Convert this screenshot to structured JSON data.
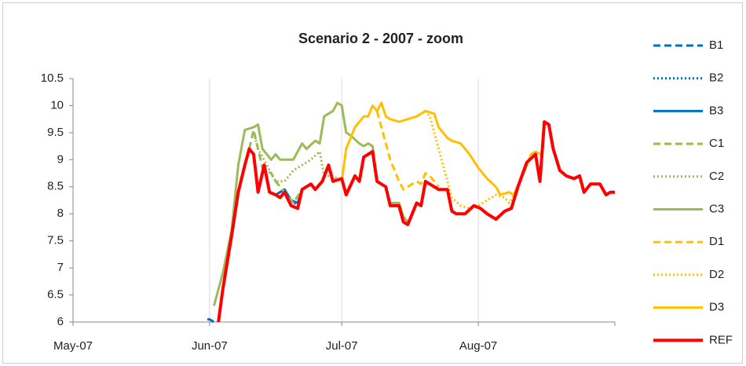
{
  "chart_data": {
    "type": "line",
    "title": "Scenario 2 - 2007 - zoom",
    "xlim": [
      0,
      123
    ],
    "xticks": [
      {
        "value": 0,
        "label": "May-07"
      },
      {
        "value": 31,
        "label": "Jun-07"
      },
      {
        "value": 61,
        "label": "Jul-07"
      },
      {
        "value": 92,
        "label": "Aug-07"
      }
    ],
    "ylim": [
      6,
      10.5
    ],
    "yticks": [
      6,
      6.5,
      7,
      7.5,
      8,
      8.5,
      9,
      9.5,
      10,
      10.5
    ],
    "grid": "x",
    "legend": "right",
    "series": [
      {
        "name": "B1",
        "color": "#0070c0",
        "dash": "dashed",
        "x": [
          30.5,
          31,
          32
        ],
        "values": [
          6.05,
          6.05,
          6.0
        ]
      },
      {
        "name": "B2",
        "color": "#0070c0",
        "dash": "dotted",
        "x": [
          46,
          48,
          49.5,
          51
        ],
        "values": [
          8.35,
          8.45,
          8.25,
          8.15
        ]
      },
      {
        "name": "B3",
        "color": "#0070c0",
        "dash": "solid",
        "x": [
          46,
          47,
          48,
          49.5,
          51,
          52
        ],
        "values": [
          8.35,
          8.4,
          8.45,
          8.25,
          8.2,
          8.45
        ]
      },
      {
        "name": "C1",
        "color": "#9bbb59",
        "dash": "dashed",
        "x": [
          40,
          41,
          42,
          43,
          45,
          46,
          48,
          49,
          50,
          52
        ],
        "values": [
          9.2,
          9.55,
          9.2,
          8.85,
          8.75,
          8.6,
          8.4,
          8.3,
          8.2,
          8.45
        ]
      },
      {
        "name": "C2",
        "color": "#9bbb59",
        "dash": "dotted",
        "x": [
          41,
          42,
          44,
          46,
          48,
          50,
          52,
          54,
          56,
          57,
          59,
          61
        ],
        "values": [
          9.5,
          9.2,
          8.9,
          8.6,
          8.6,
          8.8,
          8.9,
          9.0,
          9.15,
          8.7,
          8.7,
          8.6
        ]
      },
      {
        "name": "C3",
        "color": "#9bbb59",
        "dash": "solid",
        "x": [
          32,
          34,
          36,
          37.5,
          39,
          41,
          42,
          43,
          45,
          46,
          47,
          49,
          50,
          52,
          53,
          55,
          56,
          57,
          59,
          60,
          61,
          62,
          63,
          65,
          66,
          67,
          68,
          69,
          71,
          72,
          74,
          75,
          76
        ],
        "values": [
          6.3,
          6.9,
          7.7,
          8.9,
          9.55,
          9.6,
          9.65,
          9.2,
          9.0,
          9.1,
          9.0,
          9.0,
          9.0,
          9.3,
          9.2,
          9.35,
          9.3,
          9.8,
          9.9,
          10.05,
          10.0,
          9.5,
          9.45,
          9.3,
          9.25,
          9.3,
          9.25,
          8.6,
          8.5,
          8.2,
          8.2,
          7.95,
          7.85
        ]
      },
      {
        "name": "D1",
        "color": "#ffc000",
        "dash": "dashed",
        "x": [
          69,
          70,
          72,
          74,
          75,
          77,
          78,
          79,
          80,
          81,
          82,
          83
        ],
        "values": [
          9.9,
          9.6,
          9.0,
          8.6,
          8.45,
          8.55,
          8.6,
          8.55,
          8.75,
          8.7,
          8.6,
          8.5
        ]
      },
      {
        "name": "D2",
        "color": "#ffc000",
        "dash": "dotted",
        "x": [
          80,
          81,
          82,
          84,
          85,
          86,
          88,
          90,
          92,
          94,
          96,
          98,
          99,
          101
        ],
        "values": [
          9.9,
          9.8,
          9.5,
          8.9,
          8.6,
          8.3,
          8.15,
          8.1,
          8.15,
          8.25,
          8.35,
          8.3,
          8.2,
          8.45
        ]
      },
      {
        "name": "D3",
        "color": "#ffc000",
        "dash": "solid",
        "x": [
          61,
          62,
          64,
          65,
          66,
          67,
          68,
          69,
          70,
          71,
          72,
          74,
          76,
          78,
          80,
          82,
          83,
          85,
          86,
          88,
          90,
          92,
          94,
          96,
          97,
          99,
          100,
          102,
          104,
          105,
          106
        ],
        "values": [
          8.6,
          9.2,
          9.6,
          9.7,
          9.8,
          9.8,
          10.0,
          9.9,
          10.05,
          9.8,
          9.75,
          9.7,
          9.75,
          9.8,
          9.9,
          9.85,
          9.6,
          9.4,
          9.35,
          9.3,
          9.1,
          8.85,
          8.65,
          8.5,
          8.35,
          8.4,
          8.35,
          8.7,
          9.1,
          9.15,
          9.1
        ]
      },
      {
        "name": "REF",
        "color": "#ff0000",
        "dash": "solid",
        "x": [
          33,
          34,
          36,
          37.5,
          39,
          40,
          41,
          42,
          43.4,
          44.6,
          46,
          47,
          48,
          49.5,
          51,
          52,
          54,
          55,
          56.6,
          58,
          59,
          61,
          62,
          64,
          65,
          66,
          68,
          69,
          71,
          72,
          74,
          75,
          76,
          78,
          79,
          80,
          82,
          83,
          85,
          86,
          87,
          89,
          91,
          92.5,
          94,
          96,
          98,
          99.5,
          101,
          103,
          105,
          106,
          107,
          108,
          109,
          110.5,
          112,
          113.7,
          115,
          116,
          117.5,
          119.6,
          121,
          122,
          123
        ],
        "values": [
          6.0,
          6.6,
          7.6,
          8.4,
          8.9,
          9.2,
          9.1,
          8.4,
          8.9,
          8.4,
          8.35,
          8.3,
          8.4,
          8.15,
          8.1,
          8.45,
          8.55,
          8.45,
          8.6,
          8.9,
          8.6,
          8.65,
          8.35,
          8.7,
          8.6,
          9.05,
          9.15,
          8.6,
          8.5,
          8.15,
          8.15,
          7.85,
          7.8,
          8.2,
          8.15,
          8.6,
          8.5,
          8.45,
          8.45,
          8.05,
          8.0,
          8.0,
          8.15,
          8.1,
          8.0,
          7.9,
          8.05,
          8.1,
          8.5,
          8.95,
          9.1,
          8.6,
          9.7,
          9.65,
          9.2,
          8.8,
          8.7,
          8.65,
          8.7,
          8.4,
          8.55,
          8.55,
          8.35,
          8.4,
          8.4
        ]
      }
    ]
  }
}
